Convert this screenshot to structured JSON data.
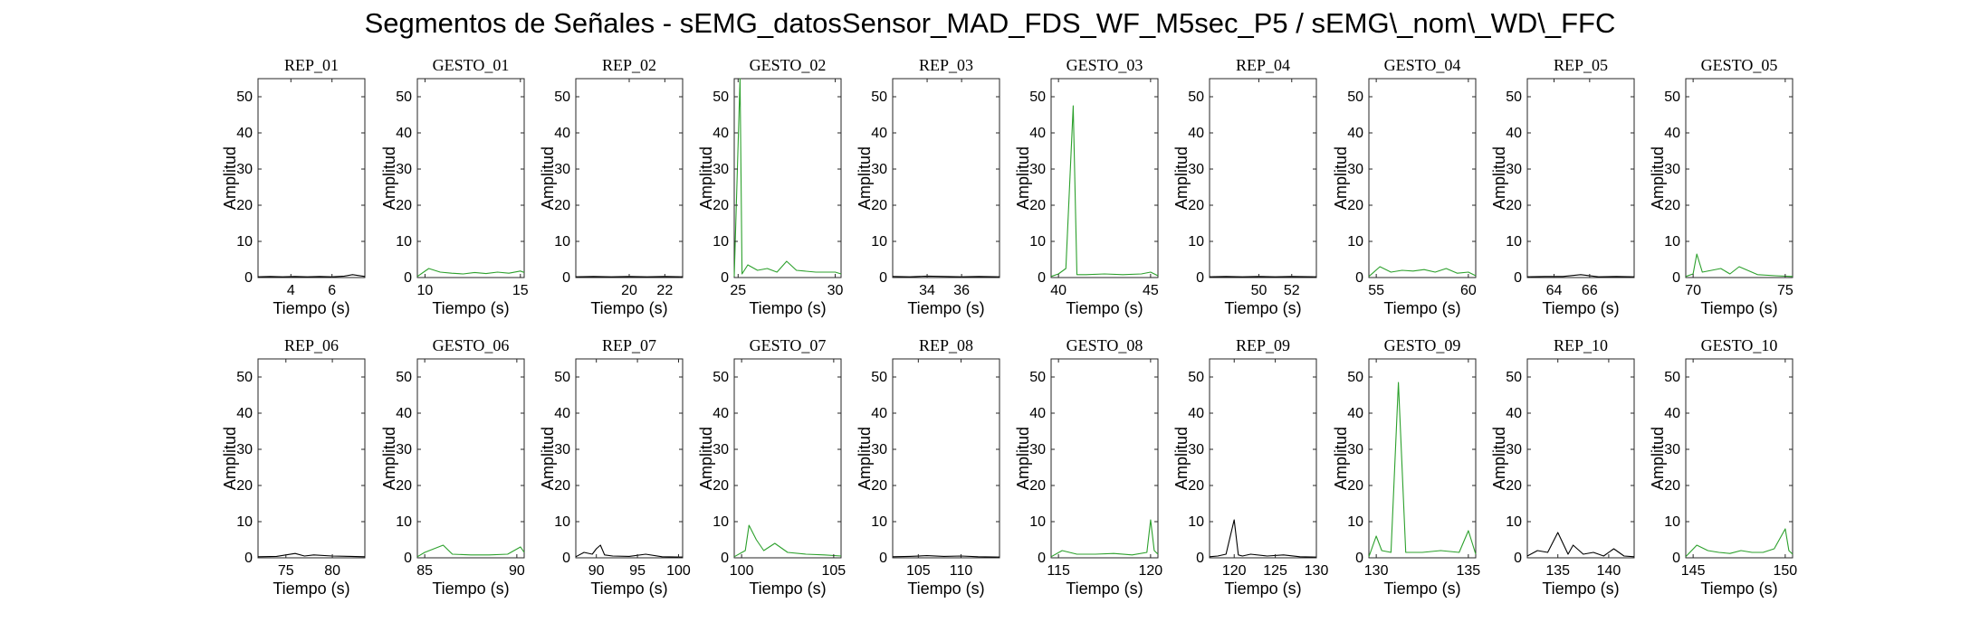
{
  "figure": {
    "title": "Segmentos de Señales - sEMG_datosSensor_MAD_FDS_WF_M5sec_P5 / sEMG\\_nom\\_WD\\_FFC"
  },
  "colors": {
    "rep": "#000000",
    "gesto": "#2ca02c",
    "axis": "#262626"
  },
  "chart_data": [
    {
      "type": "line",
      "title": "REP_01",
      "xlabel": "Tiempo (s)",
      "ylabel": "Amplitud",
      "xlim": [
        2.4,
        7.6
      ],
      "ylim": [
        0,
        55
      ],
      "xticks": [
        4,
        6
      ],
      "yticks": [
        0,
        10,
        20,
        30,
        40,
        50
      ],
      "color": "rep",
      "series": [
        {
          "x": [
            2.4,
            3.0,
            3.6,
            4.2,
            4.8,
            5.4,
            6.0,
            6.6,
            7.0,
            7.6
          ],
          "y": [
            0.2,
            0.3,
            0.2,
            0.3,
            0.2,
            0.3,
            0.2,
            0.4,
            0.8,
            0.3
          ]
        }
      ]
    },
    {
      "type": "line",
      "title": "GESTO_01",
      "xlabel": "Tiempo (s)",
      "ylabel": "Amplitud",
      "xlim": [
        9.6,
        15.2
      ],
      "ylim": [
        0,
        55
      ],
      "xticks": [
        10,
        15
      ],
      "yticks": [
        0,
        10,
        20,
        30,
        40,
        50
      ],
      "color": "gesto",
      "series": [
        {
          "x": [
            9.6,
            10.2,
            10.8,
            11.4,
            12.0,
            12.6,
            13.2,
            13.8,
            14.4,
            15.0,
            15.2
          ],
          "y": [
            0.3,
            2.5,
            1.5,
            1.2,
            1.0,
            1.4,
            1.1,
            1.5,
            1.2,
            1.8,
            1.4
          ]
        }
      ]
    },
    {
      "type": "line",
      "title": "REP_02",
      "xlabel": "Tiempo (s)",
      "ylabel": "Amplitud",
      "xlim": [
        17.0,
        23.0
      ],
      "ylim": [
        0,
        55
      ],
      "xticks": [
        20,
        22
      ],
      "yticks": [
        0,
        10,
        20,
        30,
        40,
        50
      ],
      "color": "rep",
      "series": [
        {
          "x": [
            17.0,
            18.0,
            19.0,
            20.0,
            21.0,
            22.0,
            23.0
          ],
          "y": [
            0.2,
            0.3,
            0.2,
            0.3,
            0.2,
            0.3,
            0.2
          ]
        }
      ]
    },
    {
      "type": "line",
      "title": "GESTO_02",
      "xlabel": "Tiempo (s)",
      "ylabel": "Amplitud",
      "xlim": [
        24.8,
        30.3
      ],
      "ylim": [
        0,
        55
      ],
      "xticks": [
        25,
        30
      ],
      "yticks": [
        0,
        10,
        20,
        30,
        40,
        50
      ],
      "color": "gesto",
      "series": [
        {
          "x": [
            24.8,
            25.1,
            25.2,
            25.5,
            26.0,
            26.5,
            27.0,
            27.5,
            28.0,
            29.0,
            30.0,
            30.3
          ],
          "y": [
            0.3,
            55,
            1.0,
            3.5,
            2.0,
            2.5,
            1.5,
            4.5,
            2.0,
            1.5,
            1.5,
            1.0
          ]
        }
      ]
    },
    {
      "type": "line",
      "title": "REP_03",
      "xlabel": "Tiempo (s)",
      "ylabel": "Amplitud",
      "xlim": [
        32.0,
        38.2
      ],
      "ylim": [
        0,
        55
      ],
      "xticks": [
        34,
        36
      ],
      "yticks": [
        0,
        10,
        20,
        30,
        40,
        50
      ],
      "color": "rep",
      "series": [
        {
          "x": [
            32.0,
            33.0,
            34.0,
            35.0,
            36.0,
            37.0,
            38.2
          ],
          "y": [
            0.3,
            0.2,
            0.4,
            0.3,
            0.2,
            0.3,
            0.2
          ]
        }
      ]
    },
    {
      "type": "line",
      "title": "GESTO_03",
      "xlabel": "Tiempo (s)",
      "ylabel": "Amplitud",
      "xlim": [
        39.6,
        45.4
      ],
      "ylim": [
        0,
        55
      ],
      "xticks": [
        40,
        45
      ],
      "yticks": [
        0,
        10,
        20,
        30,
        40,
        50
      ],
      "color": "gesto",
      "series": [
        {
          "x": [
            39.6,
            40.0,
            40.4,
            40.8,
            41.0,
            41.5,
            42.5,
            43.5,
            44.5,
            45.0,
            45.4
          ],
          "y": [
            0.3,
            1.0,
            2.5,
            47.5,
            0.8,
            0.8,
            1.0,
            0.8,
            1.0,
            1.5,
            0.5
          ]
        }
      ]
    },
    {
      "type": "line",
      "title": "REP_04",
      "xlabel": "Tiempo (s)",
      "ylabel": "Amplitud",
      "xlim": [
        47.0,
        53.5
      ],
      "ylim": [
        0,
        55
      ],
      "xticks": [
        50,
        52
      ],
      "yticks": [
        0,
        10,
        20,
        30,
        40,
        50
      ],
      "color": "rep",
      "series": [
        {
          "x": [
            47.0,
            48.0,
            49.0,
            50.0,
            51.0,
            52.0,
            53.5
          ],
          "y": [
            0.2,
            0.3,
            0.2,
            0.3,
            0.2,
            0.3,
            0.2
          ]
        }
      ]
    },
    {
      "type": "line",
      "title": "GESTO_04",
      "xlabel": "Tiempo (s)",
      "ylabel": "Amplitud",
      "xlim": [
        54.6,
        60.4
      ],
      "ylim": [
        0,
        55
      ],
      "xticks": [
        55,
        60
      ],
      "yticks": [
        0,
        10,
        20,
        30,
        40,
        50
      ],
      "color": "gesto",
      "series": [
        {
          "x": [
            54.6,
            55.2,
            55.8,
            56.4,
            57.0,
            57.6,
            58.2,
            58.8,
            59.4,
            60.0,
            60.4
          ],
          "y": [
            0.3,
            3.0,
            1.5,
            2.0,
            1.8,
            2.2,
            1.5,
            2.5,
            1.2,
            1.5,
            0.5
          ]
        }
      ]
    },
    {
      "type": "line",
      "title": "REP_05",
      "xlabel": "Tiempo (s)",
      "ylabel": "Amplitud",
      "xlim": [
        62.5,
        68.5
      ],
      "ylim": [
        0,
        55
      ],
      "xticks": [
        64,
        66
      ],
      "yticks": [
        0,
        10,
        20,
        30,
        40,
        50
      ],
      "color": "rep",
      "series": [
        {
          "x": [
            62.5,
            63.5,
            64.5,
            65.5,
            66.5,
            67.5,
            68.5
          ],
          "y": [
            0.2,
            0.3,
            0.3,
            0.8,
            0.2,
            0.3,
            0.2
          ]
        }
      ]
    },
    {
      "type": "line",
      "title": "GESTO_05",
      "xlabel": "Tiempo (s)",
      "ylabel": "Amplitud",
      "xlim": [
        69.6,
        75.4
      ],
      "ylim": [
        0,
        55
      ],
      "xticks": [
        70,
        75
      ],
      "yticks": [
        0,
        10,
        20,
        30,
        40,
        50
      ],
      "color": "gesto",
      "series": [
        {
          "x": [
            69.6,
            70.0,
            70.2,
            70.5,
            71.0,
            71.5,
            72.0,
            72.5,
            73.5,
            74.5,
            75.4
          ],
          "y": [
            0.3,
            1.0,
            6.5,
            1.5,
            2.0,
            2.5,
            1.0,
            3.0,
            0.8,
            0.5,
            0.3
          ]
        }
      ]
    },
    {
      "type": "line",
      "title": "REP_06",
      "xlabel": "Tiempo (s)",
      "ylabel": "Amplitud",
      "xlim": [
        72.0,
        83.5
      ],
      "ylim": [
        0,
        55
      ],
      "xticks": [
        75,
        80
      ],
      "yticks": [
        0,
        10,
        20,
        30,
        40,
        50
      ],
      "color": "rep",
      "series": [
        {
          "x": [
            72.0,
            74.0,
            76.0,
            77.0,
            78.0,
            80.0,
            82.0,
            83.5
          ],
          "y": [
            0.3,
            0.4,
            1.2,
            0.5,
            0.8,
            0.5,
            0.4,
            0.3
          ]
        }
      ]
    },
    {
      "type": "line",
      "title": "GESTO_06",
      "xlabel": "Tiempo (s)",
      "ylabel": "Amplitud",
      "xlim": [
        84.6,
        90.4
      ],
      "ylim": [
        0,
        55
      ],
      "xticks": [
        85,
        90
      ],
      "yticks": [
        0,
        10,
        20,
        30,
        40,
        50
      ],
      "color": "gesto",
      "series": [
        {
          "x": [
            84.6,
            85.0,
            85.5,
            86.0,
            86.5,
            87.5,
            88.5,
            89.5,
            90.2,
            90.4
          ],
          "y": [
            0.3,
            1.5,
            2.5,
            3.5,
            1.0,
            0.8,
            0.8,
            1.0,
            3.0,
            1.5
          ]
        }
      ]
    },
    {
      "type": "line",
      "title": "REP_07",
      "xlabel": "Tiempo (s)",
      "ylabel": "Amplitud",
      "xlim": [
        87.5,
        100.5
      ],
      "ylim": [
        0,
        55
      ],
      "xticks": [
        90,
        95,
        100
      ],
      "yticks": [
        0,
        10,
        20,
        30,
        40,
        50
      ],
      "color": "rep",
      "series": [
        {
          "x": [
            87.5,
            88.5,
            89.5,
            90.0,
            90.5,
            91.0,
            92.0,
            94.0,
            96.0,
            98.0,
            100.5
          ],
          "y": [
            0.3,
            1.5,
            1.0,
            2.5,
            3.5,
            0.8,
            0.5,
            0.4,
            1.0,
            0.3,
            0.2
          ]
        }
      ]
    },
    {
      "type": "line",
      "title": "GESTO_07",
      "xlabel": "Tiempo (s)",
      "ylabel": "Amplitud",
      "xlim": [
        99.6,
        105.4
      ],
      "ylim": [
        0,
        55
      ],
      "xticks": [
        100,
        105
      ],
      "yticks": [
        0,
        10,
        20,
        30,
        40,
        50
      ],
      "color": "gesto",
      "series": [
        {
          "x": [
            99.6,
            100.2,
            100.4,
            100.8,
            101.2,
            101.8,
            102.5,
            103.5,
            104.5,
            105.4
          ],
          "y": [
            0.3,
            2.0,
            9.0,
            5.0,
            2.0,
            4.0,
            1.5,
            1.0,
            0.8,
            0.5
          ]
        }
      ]
    },
    {
      "type": "line",
      "title": "REP_08",
      "xlabel": "Tiempo (s)",
      "ylabel": "Amplitud",
      "xlim": [
        102.0,
        114.5
      ],
      "ylim": [
        0,
        55
      ],
      "xticks": [
        105,
        110
      ],
      "yticks": [
        0,
        10,
        20,
        30,
        40,
        50
      ],
      "color": "rep",
      "series": [
        {
          "x": [
            102.0,
            104.0,
            106.0,
            108.0,
            110.0,
            112.0,
            114.5
          ],
          "y": [
            0.3,
            0.4,
            0.6,
            0.4,
            0.5,
            0.3,
            0.2
          ]
        }
      ]
    },
    {
      "type": "line",
      "title": "GESTO_08",
      "xlabel": "Tiempo (s)",
      "ylabel": "Amplitud",
      "xlim": [
        114.6,
        120.4
      ],
      "ylim": [
        0,
        55
      ],
      "xticks": [
        115,
        120
      ],
      "yticks": [
        0,
        10,
        20,
        30,
        40,
        50
      ],
      "color": "gesto",
      "series": [
        {
          "x": [
            114.6,
            115.2,
            116.0,
            117.0,
            118.0,
            119.0,
            119.8,
            120.0,
            120.2,
            120.4
          ],
          "y": [
            0.3,
            2.0,
            1.0,
            1.0,
            1.2,
            0.8,
            1.5,
            10.5,
            2.0,
            1.0
          ]
        }
      ]
    },
    {
      "type": "line",
      "title": "REP_09",
      "xlabel": "Tiempo (s)",
      "ylabel": "Amplitud",
      "xlim": [
        117.0,
        130.0
      ],
      "ylim": [
        0,
        55
      ],
      "xticks": [
        120,
        125,
        130
      ],
      "yticks": [
        0,
        10,
        20,
        30,
        40,
        50
      ],
      "color": "rep",
      "series": [
        {
          "x": [
            117.0,
            118.0,
            119.0,
            120.0,
            120.5,
            121.0,
            122.0,
            124.0,
            126.0,
            128.0,
            130.0
          ],
          "y": [
            0.3,
            0.5,
            1.0,
            10.5,
            0.8,
            0.5,
            1.0,
            0.5,
            0.8,
            0.3,
            0.2
          ]
        }
      ]
    },
    {
      "type": "line",
      "title": "GESTO_09",
      "xlabel": "Tiempo (s)",
      "ylabel": "Amplitud",
      "xlim": [
        129.6,
        135.4
      ],
      "ylim": [
        0,
        55
      ],
      "xticks": [
        130,
        135
      ],
      "yticks": [
        0,
        10,
        20,
        30,
        40,
        50
      ],
      "color": "gesto",
      "series": [
        {
          "x": [
            129.6,
            130.0,
            130.3,
            130.8,
            131.2,
            131.6,
            132.5,
            133.5,
            134.5,
            135.0,
            135.4
          ],
          "y": [
            0.3,
            6.0,
            2.0,
            1.5,
            48.5,
            1.5,
            1.5,
            2.0,
            1.5,
            7.5,
            1.0
          ]
        }
      ]
    },
    {
      "type": "line",
      "title": "REP_10",
      "xlabel": "Tiempo (s)",
      "ylabel": "Amplitud",
      "xlim": [
        132.0,
        142.5
      ],
      "ylim": [
        0,
        55
      ],
      "xticks": [
        135,
        140
      ],
      "yticks": [
        0,
        10,
        20,
        30,
        40,
        50
      ],
      "color": "rep",
      "series": [
        {
          "x": [
            132.0,
            133.0,
            134.0,
            135.0,
            136.0,
            136.5,
            137.5,
            138.5,
            139.5,
            140.5,
            141.5,
            142.5
          ],
          "y": [
            0.5,
            2.0,
            1.5,
            7.0,
            1.0,
            3.5,
            1.0,
            1.5,
            0.5,
            2.5,
            0.5,
            0.3
          ]
        }
      ]
    },
    {
      "type": "line",
      "title": "GESTO_10",
      "xlabel": "Tiempo (s)",
      "ylabel": "Amplitud",
      "xlim": [
        144.6,
        150.4
      ],
      "ylim": [
        0,
        55
      ],
      "xticks": [
        145,
        150
      ],
      "yticks": [
        0,
        10,
        20,
        30,
        40,
        50
      ],
      "color": "gesto",
      "series": [
        {
          "x": [
            144.6,
            145.2,
            145.8,
            146.4,
            147.0,
            147.6,
            148.2,
            148.8,
            149.4,
            150.0,
            150.2,
            150.4
          ],
          "y": [
            0.3,
            3.5,
            2.0,
            1.5,
            1.2,
            2.0,
            1.5,
            1.5,
            2.5,
            8.0,
            2.0,
            1.0
          ]
        }
      ]
    }
  ]
}
